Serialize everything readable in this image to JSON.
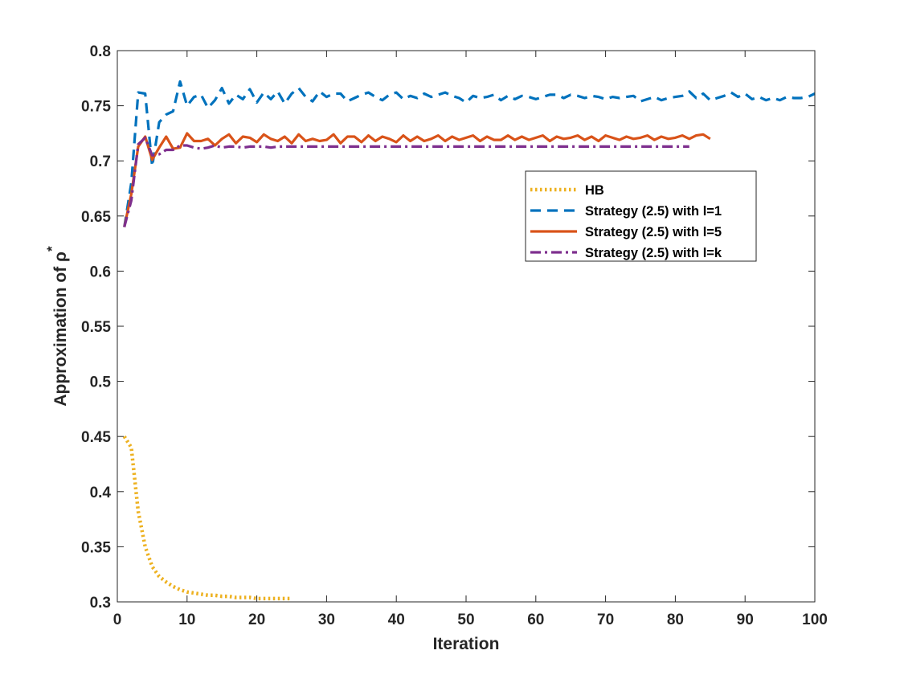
{
  "chart_data": {
    "type": "line",
    "title": "",
    "xlabel": "Iteration",
    "ylabel": "Approximation of ρ",
    "ylabel_superscript": "*",
    "xlim": [
      0,
      100
    ],
    "ylim": [
      0.3,
      0.8
    ],
    "xticks": [
      0,
      10,
      20,
      30,
      40,
      50,
      60,
      70,
      80,
      90,
      100
    ],
    "yticks": [
      0.3,
      0.35,
      0.4,
      0.45,
      0.5,
      0.55,
      0.6,
      0.65,
      0.7,
      0.75,
      0.8
    ],
    "grid": false,
    "legend_position": "upper-right-center",
    "series": [
      {
        "name": "HB",
        "color": "#EDB120",
        "style": "dotted",
        "x": [
          1,
          2,
          3,
          4,
          5,
          6,
          7,
          8,
          9,
          10,
          11,
          12,
          13,
          14,
          15,
          16,
          17,
          18,
          19,
          20,
          21,
          22,
          23,
          24,
          25
        ],
        "y": [
          0.45,
          0.44,
          0.382,
          0.35,
          0.332,
          0.323,
          0.318,
          0.314,
          0.311,
          0.309,
          0.308,
          0.307,
          0.306,
          0.306,
          0.305,
          0.305,
          0.304,
          0.304,
          0.304,
          0.303,
          0.303,
          0.303,
          0.303,
          0.303,
          0.303
        ]
      },
      {
        "name": "Strategy (2.5) with l=1",
        "color": "#0072BD",
        "style": "dashed",
        "x": [
          1,
          2,
          3,
          4,
          5,
          6,
          7,
          8,
          9,
          10,
          11,
          12,
          13,
          14,
          15,
          16,
          17,
          18,
          19,
          20,
          21,
          22,
          23,
          24,
          25,
          26,
          27,
          28,
          29,
          30,
          31,
          32,
          33,
          34,
          35,
          36,
          37,
          38,
          39,
          40,
          41,
          42,
          43,
          44,
          45,
          46,
          47,
          48,
          49,
          50,
          51,
          52,
          53,
          54,
          55,
          56,
          57,
          58,
          59,
          60,
          61,
          62,
          63,
          64,
          65,
          66,
          67,
          68,
          69,
          70,
          71,
          72,
          73,
          74,
          75,
          76,
          77,
          78,
          79,
          80,
          81,
          82,
          83,
          84,
          85,
          86,
          87,
          88,
          89,
          90,
          91,
          92,
          93,
          94,
          95,
          96,
          97,
          98,
          99,
          100
        ],
        "y": [
          0.64,
          0.68,
          0.762,
          0.761,
          0.695,
          0.735,
          0.742,
          0.745,
          0.772,
          0.75,
          0.758,
          0.76,
          0.748,
          0.755,
          0.766,
          0.752,
          0.76,
          0.756,
          0.765,
          0.753,
          0.762,
          0.756,
          0.763,
          0.752,
          0.761,
          0.766,
          0.758,
          0.754,
          0.763,
          0.758,
          0.761,
          0.761,
          0.754,
          0.757,
          0.76,
          0.762,
          0.758,
          0.755,
          0.76,
          0.762,
          0.756,
          0.759,
          0.757,
          0.761,
          0.758,
          0.76,
          0.762,
          0.759,
          0.757,
          0.753,
          0.759,
          0.757,
          0.758,
          0.76,
          0.755,
          0.759,
          0.756,
          0.759,
          0.758,
          0.756,
          0.758,
          0.76,
          0.76,
          0.757,
          0.76,
          0.759,
          0.757,
          0.759,
          0.758,
          0.756,
          0.758,
          0.757,
          0.758,
          0.759,
          0.754,
          0.756,
          0.758,
          0.755,
          0.757,
          0.758,
          0.759,
          0.763,
          0.757,
          0.761,
          0.755,
          0.757,
          0.759,
          0.762,
          0.758,
          0.761,
          0.756,
          0.758,
          0.755,
          0.757,
          0.755,
          0.758,
          0.757,
          0.757,
          0.758,
          0.761
        ]
      },
      {
        "name": "Strategy (2.5) with l=5",
        "color": "#D95319",
        "style": "solid",
        "x": [
          1,
          2,
          3,
          4,
          5,
          6,
          7,
          8,
          9,
          10,
          11,
          12,
          13,
          14,
          15,
          16,
          17,
          18,
          19,
          20,
          21,
          22,
          23,
          24,
          25,
          26,
          27,
          28,
          29,
          30,
          31,
          32,
          33,
          34,
          35,
          36,
          37,
          38,
          39,
          40,
          41,
          42,
          43,
          44,
          45,
          46,
          47,
          48,
          49,
          50,
          51,
          52,
          53,
          54,
          55,
          56,
          57,
          58,
          59,
          60,
          61,
          62,
          63,
          64,
          65,
          66,
          67,
          68,
          69,
          70,
          71,
          72,
          73,
          74,
          75,
          76,
          77,
          78,
          79,
          80,
          81,
          82,
          83,
          84,
          85
        ],
        "y": [
          0.64,
          0.67,
          0.713,
          0.722,
          0.701,
          0.712,
          0.722,
          0.711,
          0.712,
          0.725,
          0.718,
          0.718,
          0.72,
          0.714,
          0.72,
          0.724,
          0.716,
          0.722,
          0.721,
          0.717,
          0.724,
          0.72,
          0.718,
          0.722,
          0.716,
          0.724,
          0.718,
          0.72,
          0.718,
          0.719,
          0.724,
          0.716,
          0.722,
          0.722,
          0.717,
          0.723,
          0.718,
          0.722,
          0.72,
          0.717,
          0.723,
          0.718,
          0.722,
          0.718,
          0.72,
          0.723,
          0.718,
          0.722,
          0.719,
          0.721,
          0.723,
          0.718,
          0.722,
          0.719,
          0.719,
          0.723,
          0.719,
          0.722,
          0.719,
          0.721,
          0.723,
          0.718,
          0.722,
          0.72,
          0.721,
          0.723,
          0.719,
          0.722,
          0.718,
          0.723,
          0.721,
          0.719,
          0.722,
          0.72,
          0.721,
          0.723,
          0.719,
          0.722,
          0.72,
          0.721,
          0.723,
          0.72,
          0.723,
          0.724,
          0.72
        ]
      },
      {
        "name": "Strategy (2.5) with l=k",
        "color": "#7E2F8E",
        "style": "dashdot",
        "x": [
          1,
          2,
          3,
          4,
          5,
          6,
          7,
          8,
          9,
          10,
          11,
          12,
          13,
          14,
          15,
          16,
          17,
          18,
          19,
          20,
          21,
          22,
          23,
          24,
          25,
          26,
          27,
          28,
          29,
          30,
          31,
          32,
          33,
          34,
          35,
          36,
          37,
          38,
          39,
          40,
          41,
          42,
          43,
          44,
          45,
          46,
          47,
          48,
          49,
          50,
          51,
          52,
          53,
          54,
          55,
          56,
          57,
          58,
          59,
          60,
          61,
          62,
          63,
          64,
          65,
          66,
          67,
          68,
          69,
          70,
          71,
          72,
          73,
          74,
          75,
          76,
          77,
          78,
          79,
          80,
          81,
          82
        ],
        "y": [
          0.64,
          0.664,
          0.715,
          0.721,
          0.705,
          0.706,
          0.71,
          0.71,
          0.714,
          0.714,
          0.712,
          0.711,
          0.712,
          0.714,
          0.712,
          0.713,
          0.713,
          0.712,
          0.713,
          0.713,
          0.713,
          0.712,
          0.713,
          0.713,
          0.713,
          0.713,
          0.713,
          0.713,
          0.713,
          0.713,
          0.713,
          0.713,
          0.713,
          0.713,
          0.713,
          0.713,
          0.713,
          0.713,
          0.713,
          0.713,
          0.713,
          0.713,
          0.713,
          0.713,
          0.713,
          0.713,
          0.713,
          0.713,
          0.713,
          0.713,
          0.713,
          0.713,
          0.713,
          0.713,
          0.713,
          0.713,
          0.713,
          0.713,
          0.713,
          0.713,
          0.713,
          0.713,
          0.713,
          0.713,
          0.713,
          0.713,
          0.713,
          0.713,
          0.713,
          0.713,
          0.713,
          0.713,
          0.713,
          0.713,
          0.713,
          0.713,
          0.713,
          0.713,
          0.713,
          0.713,
          0.713,
          0.713
        ]
      }
    ]
  }
}
